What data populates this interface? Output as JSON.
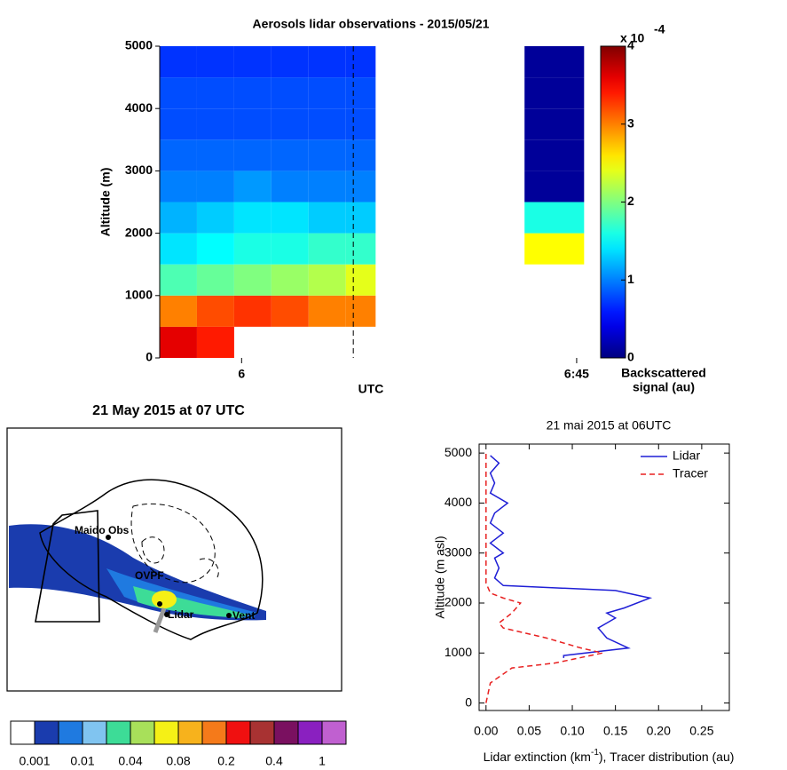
{
  "chart_data": [
    {
      "type": "heatmap",
      "title": "Aerosols lidar observations - 2015/05/21",
      "ylabel": "Altitude (m)",
      "xlabel": "UTC",
      "xlim": [
        349,
        406.2
      ],
      "ylim": [
        0,
        5000
      ],
      "xticks": [
        {
          "value": 360,
          "label": "6"
        },
        {
          "value": 405,
          "label": "6:45"
        }
      ],
      "yticks": [
        0,
        1000,
        2000,
        3000,
        4000,
        5000
      ],
      "vline": 375,
      "x_edges": [
        349,
        354,
        359,
        364,
        369,
        374,
        378,
        398,
        406
      ],
      "y_edges": [
        0,
        500,
        1000,
        1500,
        2000,
        2500,
        3000,
        3500,
        4000,
        4500,
        5000
      ],
      "z": [
        [
          3.6,
          3.4,
          null,
          null,
          null,
          null,
          null,
          null
        ],
        [
          3.0,
          3.2,
          3.3,
          3.2,
          3.0,
          3.0,
          null,
          null
        ],
        [
          1.8,
          1.9,
          2.0,
          2.1,
          2.2,
          2.4,
          null,
          null
        ],
        [
          1.4,
          1.5,
          1.6,
          1.6,
          1.7,
          1.7,
          null,
          2.5
        ],
        [
          1.2,
          1.3,
          1.4,
          1.4,
          1.3,
          1.3,
          null,
          1.6
        ],
        [
          1.0,
          1.0,
          1.1,
          1.0,
          1.0,
          1.0,
          null,
          0.1
        ],
        [
          0.9,
          0.9,
          0.9,
          0.9,
          0.9,
          0.9,
          null,
          0.1
        ],
        [
          0.8,
          0.8,
          0.8,
          0.8,
          0.8,
          0.8,
          null,
          0.1
        ],
        [
          0.8,
          0.8,
          0.8,
          0.8,
          0.8,
          0.8,
          null,
          0.1
        ],
        [
          0.7,
          0.7,
          0.7,
          0.7,
          0.7,
          0.7,
          null,
          0.1
        ]
      ],
      "clim": [
        0,
        4
      ],
      "cticks": [
        0,
        1,
        2,
        3,
        4
      ],
      "colormap": "jet",
      "cscale": "x 10",
      "cscale_exp": "-4",
      "colorbar_label": [
        "Backscattered",
        "signal (au)"
      ]
    },
    {
      "type": "line",
      "title": "21 mai 2015 at 06UTC",
      "ylabel": "Altitude (m asl)",
      "xlabel": [
        "Lidar extinction (km",
        "-1",
        "), Tracer distribution (au)"
      ],
      "xlim": [
        -0.008,
        0.282
      ],
      "ylim": [
        -150,
        5180
      ],
      "xticks": [
        {
          "value": 0,
          "label": "0.00"
        },
        {
          "value": 0.05,
          "label": "0.05"
        },
        {
          "value": 0.1,
          "label": "0.10"
        },
        {
          "value": 0.15,
          "label": "0.15"
        },
        {
          "value": 0.2,
          "label": "0.20"
        },
        {
          "value": 0.25,
          "label": "0.25"
        }
      ],
      "yticks": [
        0,
        1000,
        2000,
        3000,
        4000,
        5000
      ],
      "legend": "upper-right",
      "series": [
        {
          "name": "Lidar",
          "color": "#1f1fd6",
          "dash": false,
          "x": [
            0.09,
            0.09,
            0.165,
            0.14,
            0.13,
            0.14,
            0.15,
            0.14,
            0.16,
            0.19,
            0.15,
            0.02,
            0.01,
            0.015,
            0.01,
            0.02,
            0.005,
            0.02,
            0.005,
            0.01,
            0.025,
            0.005,
            0.01,
            0.005,
            0.015,
            0.005
          ],
          "y": [
            900,
            950,
            1100,
            1300,
            1500,
            1600,
            1700,
            1800,
            1900,
            2100,
            2250,
            2350,
            2500,
            2700,
            2900,
            3000,
            3200,
            3400,
            3600,
            3800,
            4000,
            4200,
            4400,
            4600,
            4800,
            4950
          ]
        },
        {
          "name": "Tracer",
          "color": "#e82020",
          "dash": true,
          "x": [
            0,
            0.005,
            0.03,
            0.08,
            0.135,
            0.11,
            0.07,
            0.02,
            0.015,
            0.03,
            0.04,
            0.02,
            0.005,
            0,
            0
          ],
          "y": [
            0,
            400,
            700,
            800,
            1000,
            1100,
            1300,
            1500,
            1600,
            1800,
            2000,
            2100,
            2200,
            2400,
            5000
          ]
        }
      ]
    }
  ],
  "map": {
    "title": "21 May 2015 at 07 UTC",
    "labels": [
      "Maido Obs",
      "OVPF",
      "Lidar",
      "Vent"
    ],
    "colorbar": {
      "colors": [
        "#ffffff",
        "#1a3cae",
        "#1f7ae0",
        "#80c4f0",
        "#3ddc97",
        "#a8e05a",
        "#f5f016",
        "#f7b21c",
        "#f57a1a",
        "#f01010",
        "#a83232",
        "#7a1060",
        "#8a20c0",
        "#c060d0"
      ],
      "labels": [
        "0.001",
        "0.01",
        "0.04",
        "0.08",
        "0.2",
        "0.4",
        "1"
      ]
    }
  }
}
